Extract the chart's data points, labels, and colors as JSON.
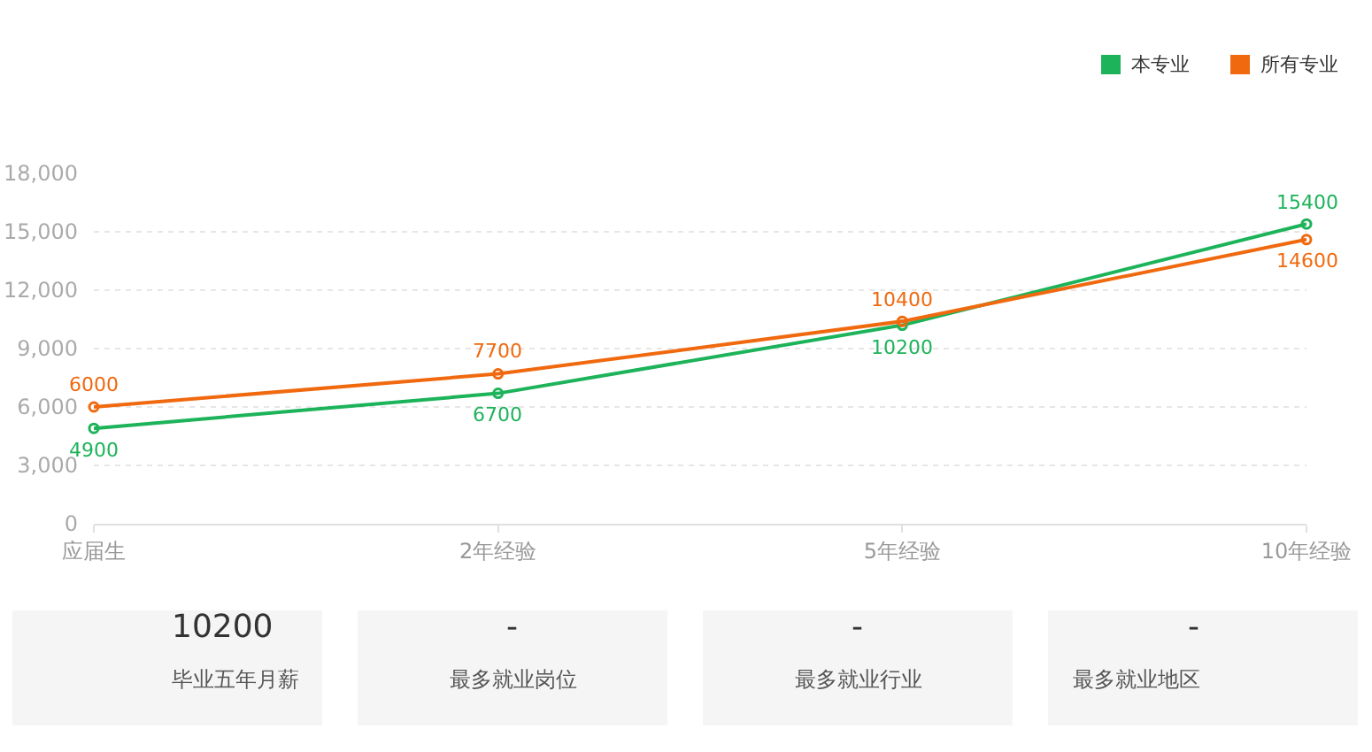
{
  "chart_data": [
    {
      "type": "line",
      "categories": [
        "应届生",
        "2年经验",
        "5年经验",
        "10年经验"
      ],
      "series": [
        {
          "name": "本专业",
          "color": "#1db35a",
          "values": [
            4900,
            6700,
            10200,
            15400
          ]
        },
        {
          "name": "所有专业",
          "color": "#f0690f",
          "values": [
            6000,
            7700,
            10400,
            14600
          ]
        }
      ],
      "ylim": [
        0,
        18000
      ],
      "yticks": [
        0,
        {
          "value": 3000,
          "label": "3,000"
        },
        {
          "value": 6000,
          "label": "6,000"
        },
        {
          "value": 9000,
          "label": "9,000"
        },
        {
          "value": 12000,
          "label": "12,000"
        },
        {
          "value": 15000,
          "label": "15,000"
        },
        {
          "value": 18000,
          "label": "18,000"
        }
      ],
      "grid": "y",
      "legend": "top right",
      "marker": "circle",
      "line_style": "solid",
      "data_labels": true
    },
    {
      "type": "other",
      "title": "10200",
      "subtitle": "毕业五年月薪"
    },
    {
      "type": "other",
      "title": "-",
      "subtitle": "最多就业岗位"
    },
    {
      "type": "other",
      "title": "-",
      "subtitle": "最多就业行业"
    },
    {
      "type": "other",
      "title": "-",
      "subtitle": "最多就业地区"
    }
  ]
}
